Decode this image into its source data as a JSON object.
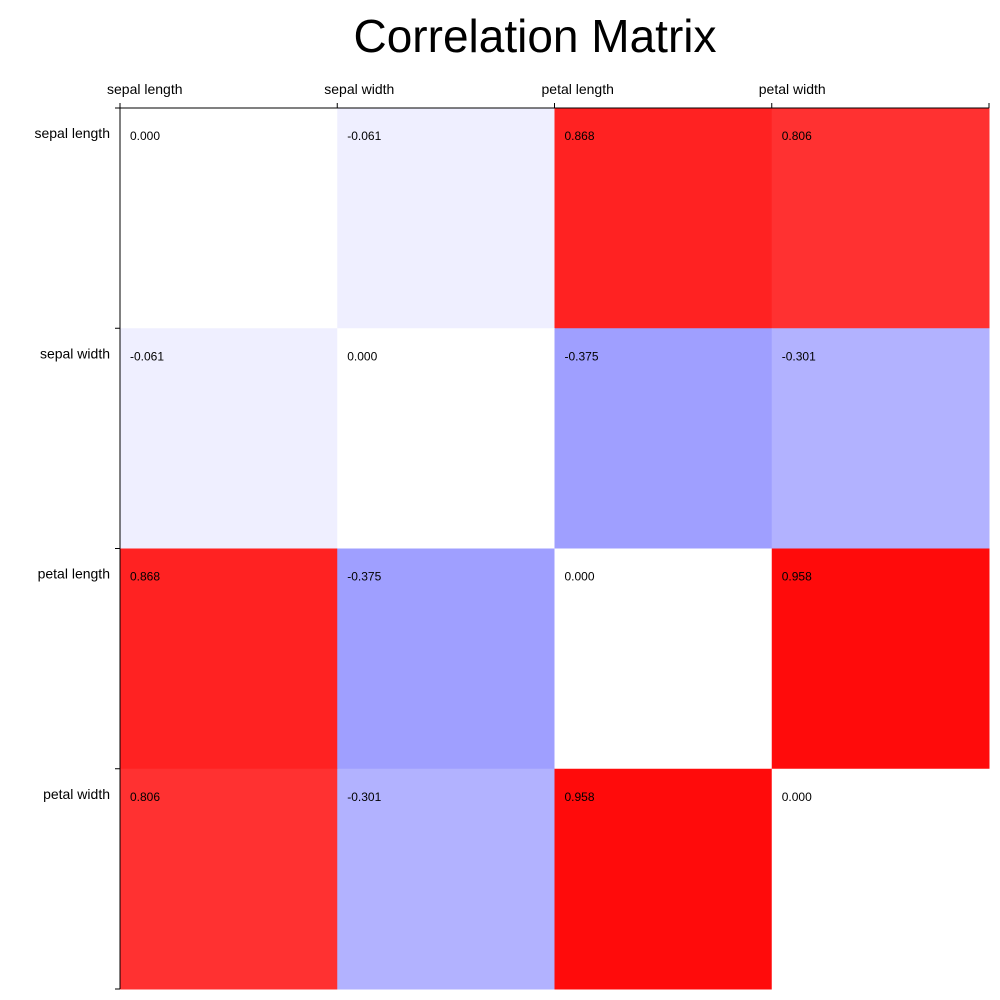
{
  "chart_data": {
    "type": "heatmap",
    "title": "Correlation Matrix",
    "xlabel": "",
    "ylabel": "",
    "x_categories": [
      "sepal length",
      "sepal width",
      "petal length",
      "petal width"
    ],
    "y_categories": [
      "sepal length",
      "sepal width",
      "petal length",
      "petal width"
    ],
    "values": [
      [
        0.0,
        -0.061,
        0.868,
        0.806
      ],
      [
        -0.061,
        0.0,
        -0.375,
        -0.301
      ],
      [
        0.868,
        -0.375,
        0.0,
        0.958
      ],
      [
        0.806,
        -0.301,
        0.958,
        0.0
      ]
    ],
    "value_labels": [
      [
        "0.000",
        "-0.061",
        "0.868",
        "0.806"
      ],
      [
        "-0.061",
        "0.000",
        "-0.375",
        "-0.301"
      ],
      [
        "0.868",
        "-0.375",
        "0.000",
        "0.958"
      ],
      [
        "0.806",
        "-0.301",
        "0.958",
        "0.000"
      ]
    ],
    "color_range": [
      -1,
      1
    ],
    "colors": {
      "negative": "#0000ff",
      "zero": "#ffffff",
      "positive": "#ff0000"
    },
    "x_axis_position": "top",
    "grid": false,
    "legend": "none"
  }
}
